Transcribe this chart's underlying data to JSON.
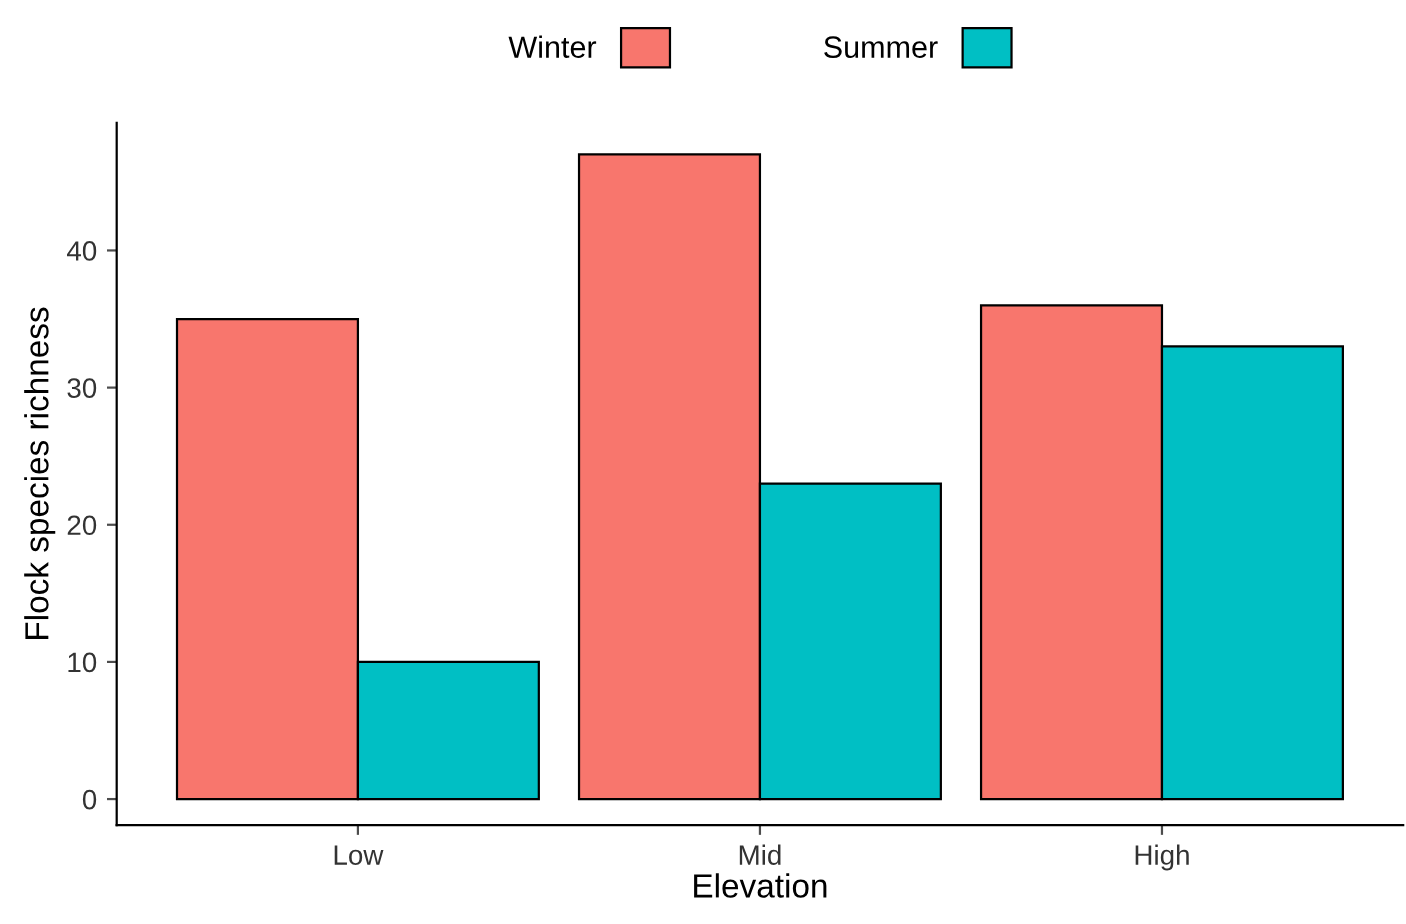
{
  "chart_data": {
    "type": "bar",
    "xlabel": "Elevation",
    "ylabel": "Flock species richness",
    "categories": [
      "Low",
      "Mid",
      "High"
    ],
    "series": [
      {
        "name": "Winter",
        "color": "#f8766d",
        "values": [
          35,
          47,
          36
        ]
      },
      {
        "name": "Summer",
        "color": "#00bfc4",
        "values": [
          10,
          23,
          33
        ]
      }
    ],
    "ylim": [
      -1.9,
      49.3
    ],
    "yticks": [
      0,
      10,
      20,
      30,
      40
    ],
    "grid": false,
    "legend": "top"
  }
}
